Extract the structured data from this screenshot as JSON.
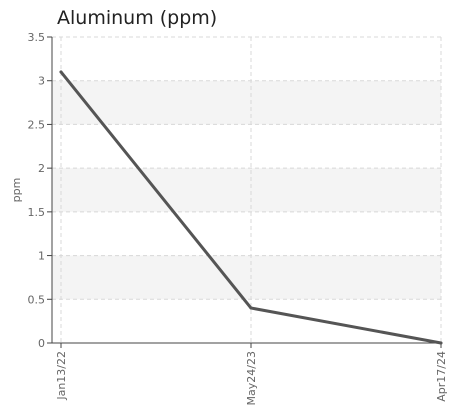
{
  "chart_data": {
    "type": "line",
    "title": "Aluminum (ppm)",
    "xlabel": "",
    "ylabel": "ppm",
    "x": [
      "Jan13/22",
      "May24/23",
      "Apr17/24"
    ],
    "series": [
      {
        "values": [
          3.1,
          0.4,
          0.0
        ]
      }
    ],
    "ylim": [
      0,
      3.5
    ],
    "yticks": [
      "0",
      "0.5",
      "1",
      "1.5",
      "2",
      "2.5",
      "3",
      "3.5"
    ],
    "grid": true,
    "legend": "none",
    "colors": {
      "line": "#555555",
      "band": "#f4f4f4",
      "grid": "#d8d8d8",
      "axis": "#444444"
    }
  }
}
